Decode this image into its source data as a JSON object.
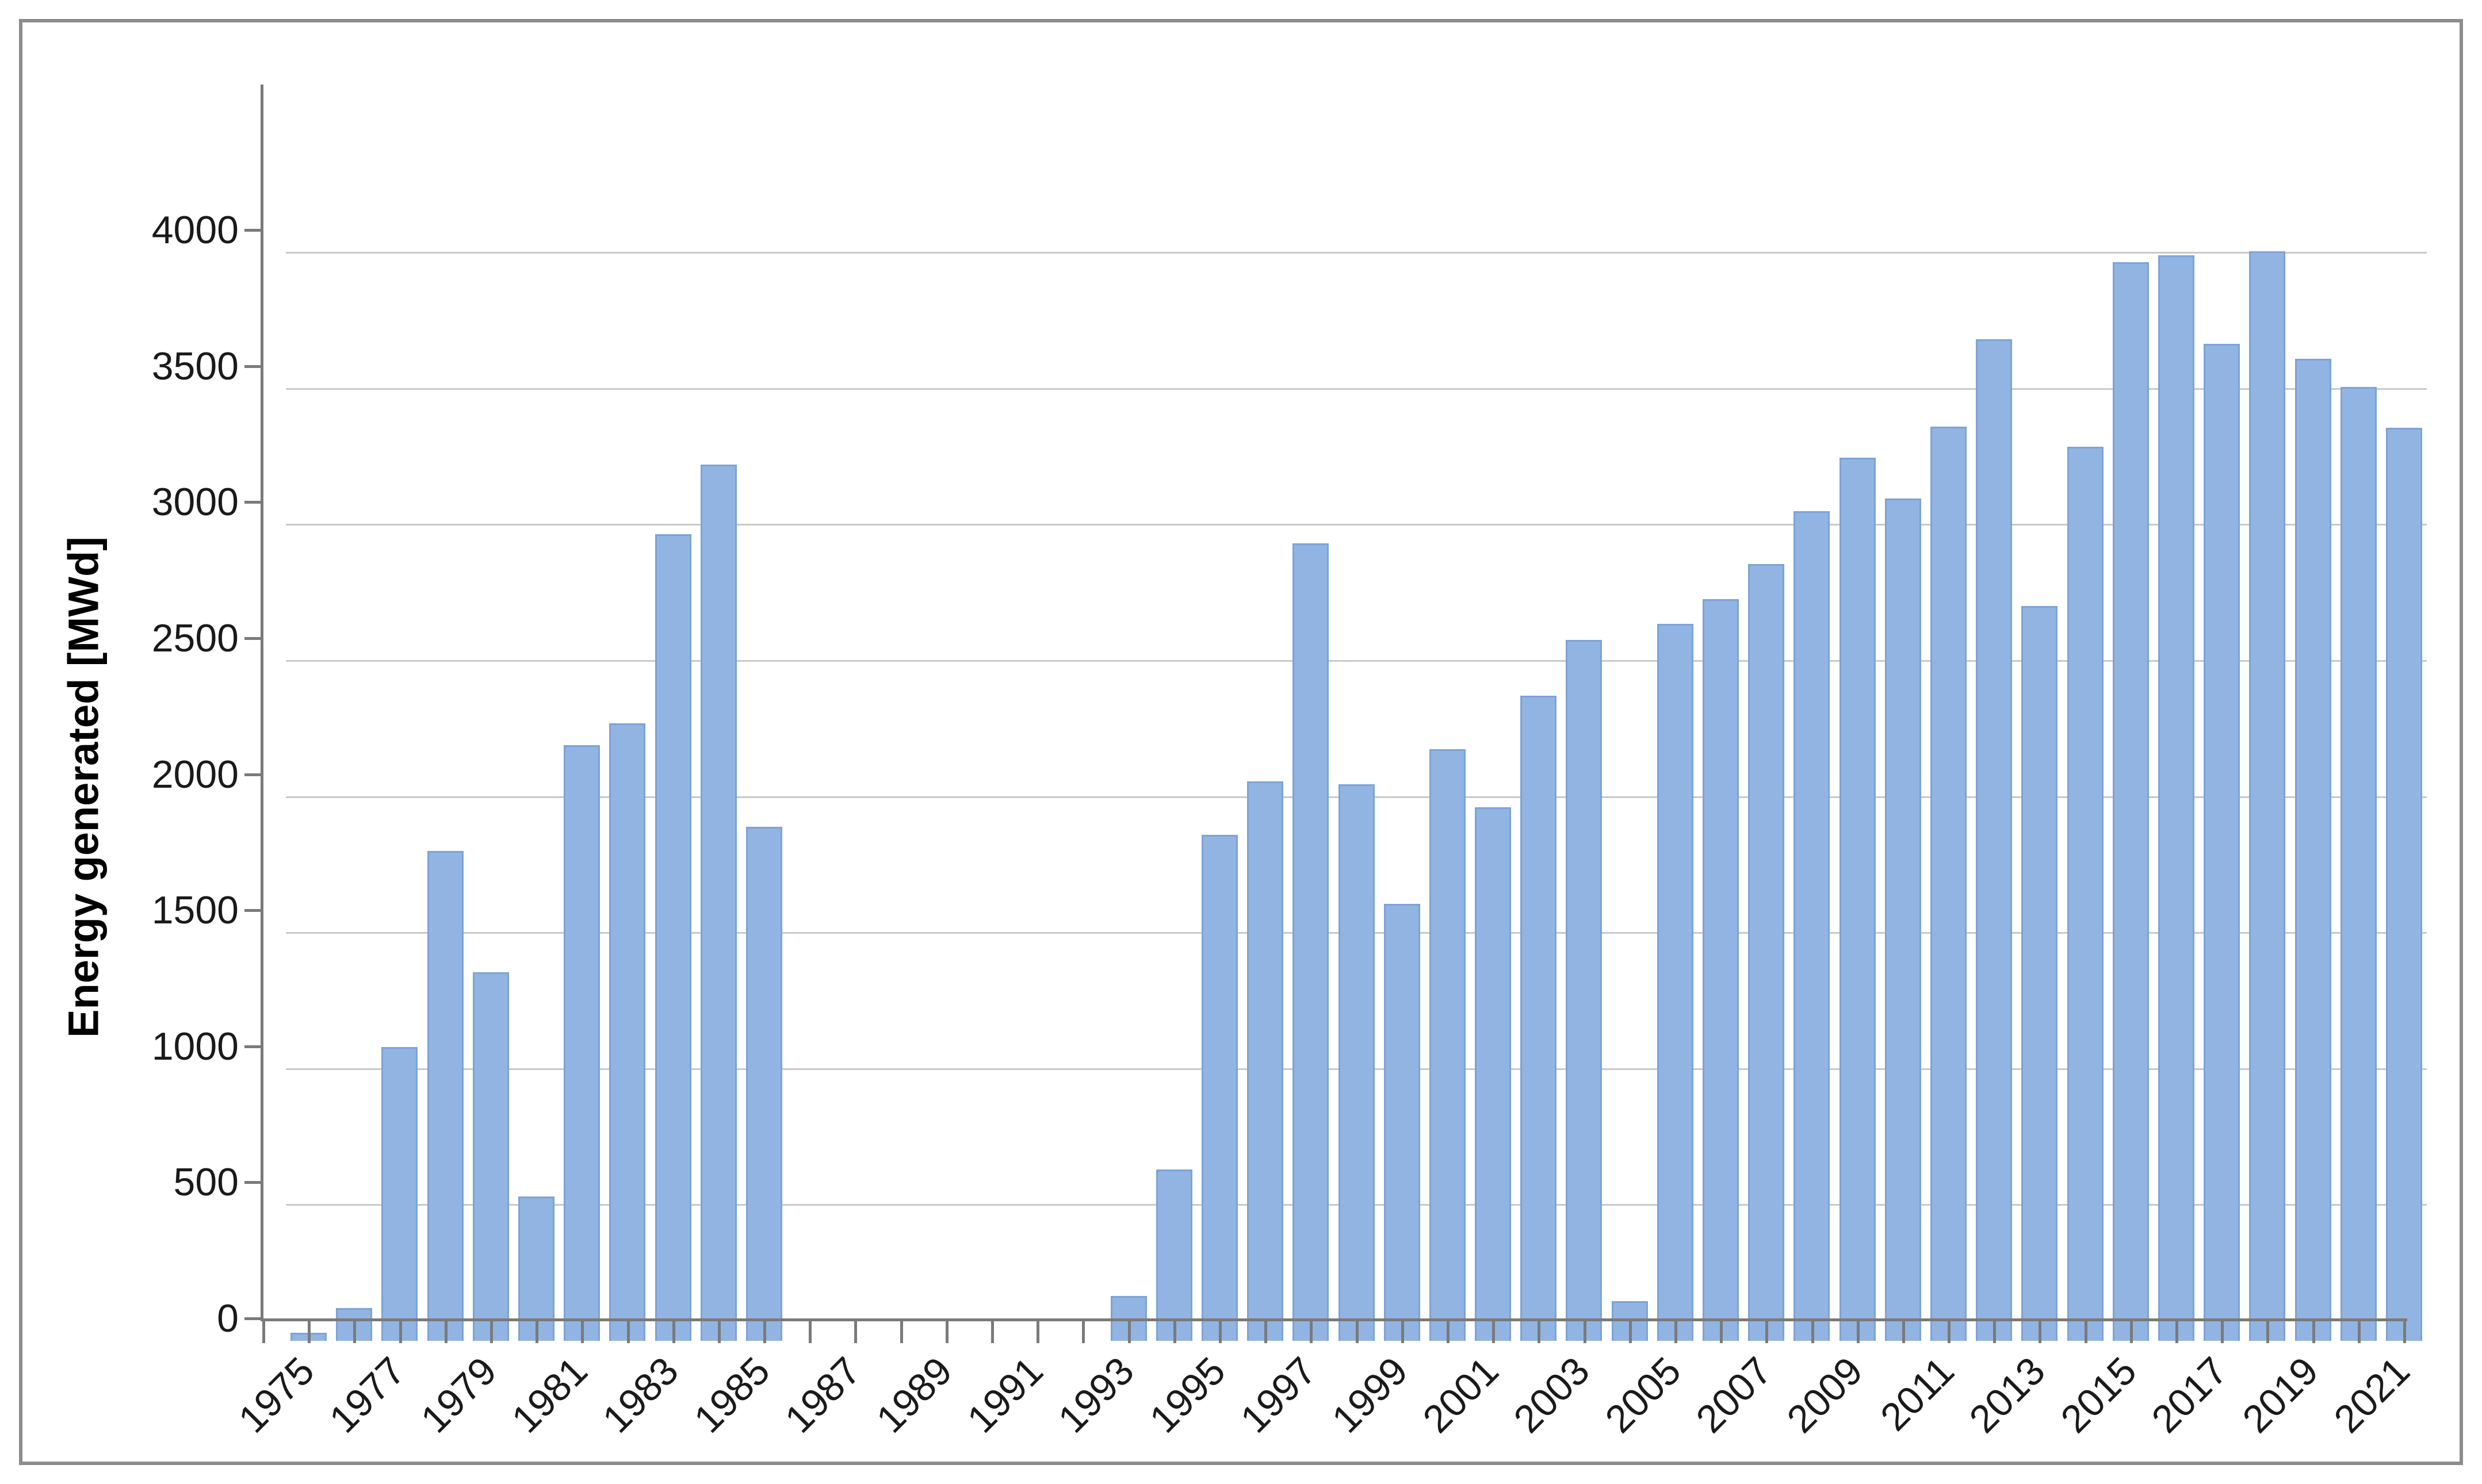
{
  "chart_data": {
    "type": "bar",
    "title": "",
    "xlabel": "",
    "ylabel": "Energy generated [MWd]",
    "legend": "none",
    "grid": "horizontal",
    "ylim": [
      0,
      4500
    ],
    "y_major_unit": 500,
    "y_tick_labels": [
      "0",
      "500",
      "1000",
      "1500",
      "2000",
      "2500",
      "3000",
      "3500",
      "4000"
    ],
    "x_tick_labels": [
      "1975",
      "1977",
      "1979",
      "1981",
      "1983",
      "1985",
      "1987",
      "1989",
      "1991",
      "1993",
      "1995",
      "1997",
      "1999",
      "2001",
      "2003",
      "2005",
      "2007",
      "2009",
      "2011",
      "2013",
      "2015",
      "2017",
      "2019",
      "2021"
    ],
    "x": [
      1975,
      1976,
      1977,
      1978,
      1979,
      1980,
      1981,
      1982,
      1983,
      1984,
      1985,
      1986,
      1987,
      1988,
      1989,
      1990,
      1991,
      1992,
      1993,
      1994,
      1995,
      1996,
      1997,
      1998,
      1999,
      2000,
      2001,
      2002,
      2003,
      2004,
      2005,
      2006,
      2007,
      2008,
      2009,
      2010,
      2011,
      2012,
      2013,
      2014,
      2015,
      2016,
      2017,
      2018,
      2019,
      2020,
      2021
    ],
    "values": [
      30,
      120,
      1080,
      1800,
      1355,
      530,
      2190,
      2270,
      2965,
      3220,
      1890,
      0,
      0,
      0,
      0,
      0,
      0,
      0,
      165,
      630,
      1860,
      2055,
      2930,
      2045,
      1605,
      2175,
      1960,
      2370,
      2575,
      145,
      2635,
      2725,
      2855,
      3050,
      3245,
      3095,
      3360,
      3680,
      2700,
      3285,
      3965,
      3990,
      3665,
      4005,
      3610,
      3505,
      3355
    ],
    "colors": {
      "bar_fill": "#92b4e2",
      "bar_border": "#7ca3d6",
      "gridline": "#c9c9c9",
      "axis": "#7a7a7a",
      "tick_label": "#1a1a1a",
      "frame_border": "#8c8c8c",
      "background": "#ffffff"
    }
  }
}
